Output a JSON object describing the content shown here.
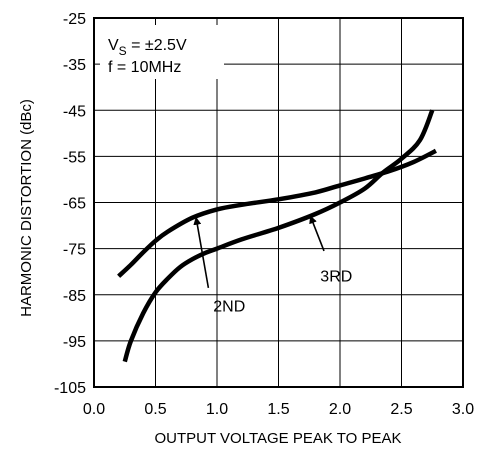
{
  "chart_data": {
    "type": "line",
    "title": "",
    "xlabel": "OUTPUT VOLTAGE PEAK TO PEAK",
    "ylabel": "HARMONIC DISTORTION (dBc)",
    "xlim": [
      0.0,
      3.0
    ],
    "ylim": [
      -105,
      -25
    ],
    "x_ticks": [
      0.0,
      0.5,
      1.0,
      1.5,
      2.0,
      2.5,
      3.0
    ],
    "x_tick_labels": [
      "0.0",
      "0.5",
      "1.0",
      "1.5",
      "2.0",
      "2.5",
      "3.0"
    ],
    "y_ticks": [
      -105,
      -95,
      -85,
      -75,
      -65,
      -55,
      -45,
      -35,
      -25
    ],
    "y_tick_labels": [
      "-105",
      "-95",
      "-85",
      "-75",
      "-65",
      "-55",
      "-45",
      "-35",
      "-25"
    ],
    "grid": true,
    "conditions": {
      "vs_prefix": "V",
      "vs_sub": "S",
      "vs_value": " = ±2.5V",
      "freq": "f = 10MHz"
    },
    "series": [
      {
        "name": "2ND",
        "x": [
          0.2,
          0.3,
          0.4,
          0.5,
          0.6,
          0.8,
          1.0,
          1.2,
          1.5,
          1.8,
          2.0,
          2.2,
          2.4,
          2.6,
          2.78
        ],
        "values": [
          -81,
          -78.5,
          -75.8,
          -73.3,
          -71.3,
          -68.3,
          -66.5,
          -65.5,
          -64.3,
          -62.8,
          -61.3,
          -59.8,
          -58.2,
          -56.2,
          -53.8
        ]
      },
      {
        "name": "3RD",
        "x": [
          0.25,
          0.3,
          0.4,
          0.5,
          0.6,
          0.7,
          0.8,
          0.9,
          1.0,
          1.2,
          1.5,
          1.8,
          2.0,
          2.2,
          2.35,
          2.5,
          2.65,
          2.75
        ],
        "values": [
          -99.5,
          -95,
          -89,
          -84.5,
          -81.5,
          -79,
          -77.3,
          -76,
          -75,
          -73,
          -70.5,
          -67.5,
          -65,
          -62,
          -58.5,
          -55.5,
          -51.5,
          -45
        ]
      }
    ],
    "annotations": [
      {
        "label": "2ND",
        "text_at": [
          1.1,
          -87.3
        ],
        "arrow_from": [
          0.93,
          -83.5
        ],
        "arrow_to": [
          0.83,
          -68.3
        ]
      },
      {
        "label": "3RD",
        "text_at": [
          1.97,
          -80.8
        ],
        "arrow_from": [
          1.87,
          -75.5
        ],
        "arrow_to": [
          1.76,
          -68.0
        ]
      }
    ]
  }
}
